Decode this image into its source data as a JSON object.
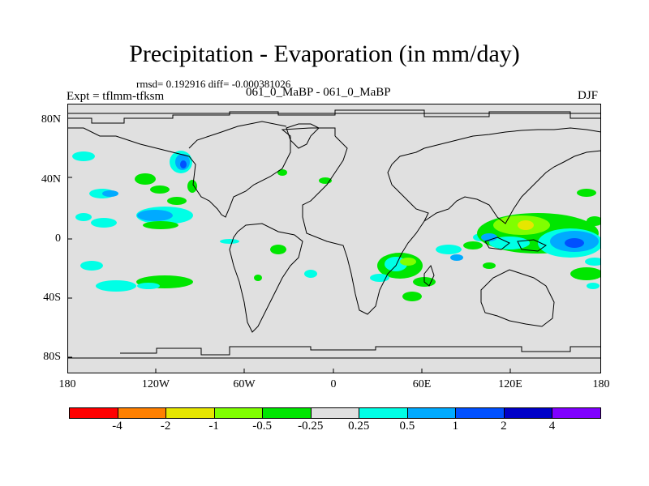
{
  "title": "Precipitation - Evaporation (in mm/day)",
  "stats": "rmsd= 0.192916 diff= -0.000381026",
  "expt": "Expt = tflmm-tfksm",
  "cases": "061_0_MaBP - 061_0_MaBP",
  "season": "DJF",
  "y_ticks": [
    "80N",
    "40N",
    "0",
    "40S",
    "80S"
  ],
  "x_ticks": [
    "180",
    "120W",
    "60W",
    "0",
    "60E",
    "120E",
    "180"
  ],
  "colorbar": {
    "colors": [
      "#ff0000",
      "#ff8000",
      "#e6e600",
      "#80ff00",
      "#00e600",
      "#e0e0e0",
      "#00ffe6",
      "#00aaff",
      "#0050ff",
      "#0000c8",
      "#8000ff"
    ],
    "labels": [
      "-4",
      "-2",
      "-1",
      "-0.5",
      "-0.25",
      "0.25",
      "0.5",
      "1",
      "2",
      "4"
    ]
  },
  "map_background_color": "#e0e0e0"
}
